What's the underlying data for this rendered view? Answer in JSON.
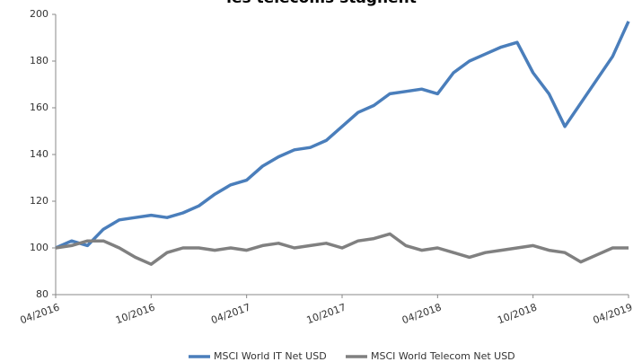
{
  "chart_data": {
    "type": "line",
    "title": "ies telecoms stagnent",
    "x": [
      "04/2016",
      "05/2016",
      "06/2016",
      "07/2016",
      "08/2016",
      "09/2016",
      "10/2016",
      "11/2016",
      "12/2016",
      "01/2017",
      "02/2017",
      "03/2017",
      "04/2017",
      "05/2017",
      "06/2017",
      "07/2017",
      "08/2017",
      "09/2017",
      "10/2017",
      "11/2017",
      "12/2017",
      "01/2018",
      "02/2018",
      "03/2018",
      "04/2018",
      "05/2018",
      "06/2018",
      "07/2018",
      "08/2018",
      "09/2018",
      "10/2018",
      "11/2018",
      "12/2018",
      "01/2019",
      "02/2019",
      "03/2019",
      "04/2019"
    ],
    "series": [
      {
        "name": "MSCI World IT Net USD",
        "color": "#4a7ebb",
        "values": [
          100,
          103,
          101,
          108,
          112,
          113,
          114,
          113,
          115,
          118,
          123,
          127,
          129,
          135,
          139,
          142,
          143,
          146,
          152,
          158,
          161,
          166,
          167,
          168,
          166,
          175,
          180,
          183,
          186,
          188,
          175,
          166,
          152,
          162,
          172,
          182,
          197
        ]
      },
      {
        "name": "MSCI World Telecom Net USD",
        "color": "#808080",
        "values": [
          100,
          101,
          103,
          103,
          100,
          96,
          93,
          98,
          100,
          100,
          99,
          100,
          99,
          101,
          102,
          100,
          101,
          102,
          100,
          103,
          104,
          106,
          101,
          99,
          100,
          98,
          96,
          98,
          99,
          100,
          101,
          99,
          98,
          94,
          97,
          100,
          100
        ]
      }
    ],
    "ylim": [
      80,
      200
    ],
    "yticks": [
      80,
      100,
      120,
      140,
      160,
      180,
      200
    ],
    "xticks": [
      "04/2016",
      "10/2016",
      "04/2017",
      "10/2017",
      "04/2018",
      "10/2018",
      "04/2019"
    ],
    "legend": "bottom"
  }
}
